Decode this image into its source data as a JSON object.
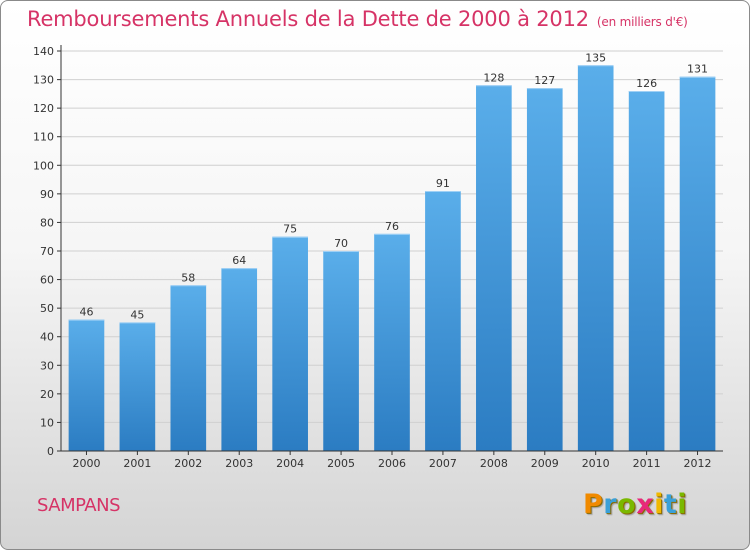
{
  "header": {
    "title": "Remboursements Annuels de la Dette de 2000 à 2012",
    "unit": "(en milliers d'€)"
  },
  "footer": {
    "commune": "SAMPANS",
    "logo_text": "Proxiti",
    "logo_colors": [
      "#f08a00",
      "#3aa0d8",
      "#7ab800",
      "#e8287a",
      "#f0b800",
      "#3aa0d8",
      "#7ab800"
    ]
  },
  "colors": {
    "title": "#d63366",
    "bar_top": "#5aaeea",
    "bar_bottom": "#2b7cc2",
    "axis": "#333333",
    "grid": "#d0d0d0"
  },
  "chart_data": {
    "type": "bar",
    "title": "Remboursements Annuels de la Dette de 2000 à 2012",
    "xlabel": "",
    "ylabel": "",
    "ylim": [
      0,
      140
    ],
    "ytick_step": 10,
    "grid": true,
    "categories": [
      "2000",
      "2001",
      "2002",
      "2003",
      "2004",
      "2005",
      "2006",
      "2007",
      "2008",
      "2009",
      "2010",
      "2011",
      "2012"
    ],
    "values": [
      46,
      45,
      58,
      64,
      75,
      70,
      76,
      91,
      128,
      127,
      135,
      126,
      131
    ]
  }
}
